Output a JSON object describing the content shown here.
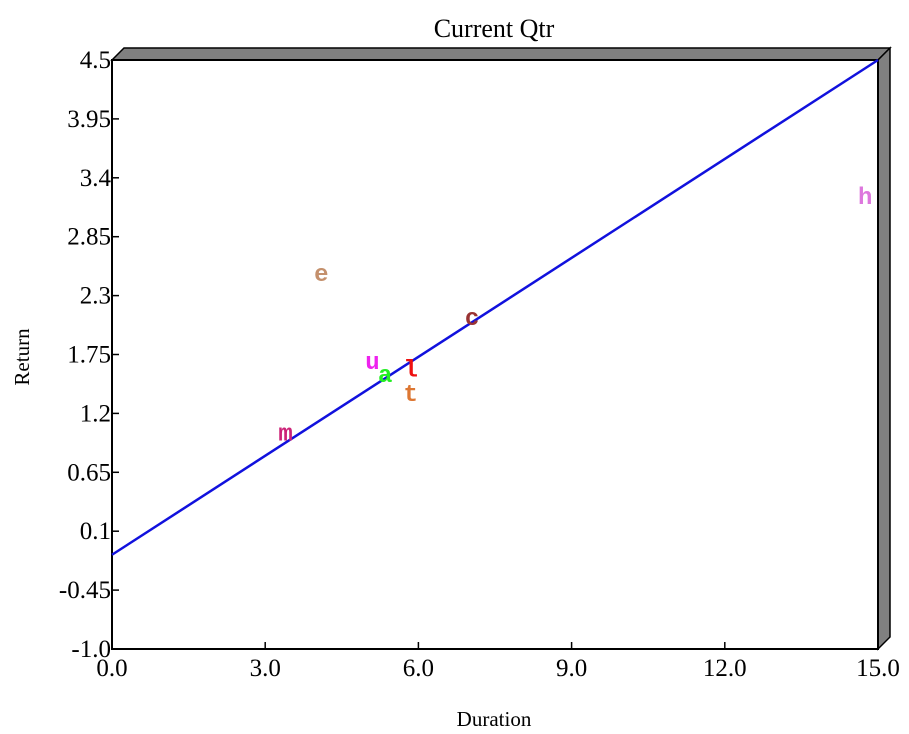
{
  "chart_data": {
    "type": "scatter",
    "title": "Current Qtr",
    "xlabel": "Duration",
    "ylabel": "Return",
    "xlim": [
      0.0,
      15.0
    ],
    "ylim": [
      -1.0,
      4.5
    ],
    "x_ticks": [
      "0.0",
      "3.0",
      "6.0",
      "9.0",
      "12.0",
      "15.0"
    ],
    "y_ticks": [
      "4.5",
      "3.95",
      "3.4",
      "2.85",
      "2.3",
      "1.75",
      "1.2",
      "0.65",
      "0.1",
      "-0.45",
      "-1.0"
    ],
    "points": [
      {
        "label": "m",
        "x": 3.4,
        "y": 1.02,
        "color": "#cc2277"
      },
      {
        "label": "e",
        "x": 4.1,
        "y": 2.51,
        "color": "#c4906c"
      },
      {
        "label": "u",
        "x": 5.1,
        "y": 1.69,
        "color": "#ee22ee"
      },
      {
        "label": "a",
        "x": 5.35,
        "y": 1.57,
        "color": "#22ee22"
      },
      {
        "label": "l",
        "x": 5.85,
        "y": 1.62,
        "color": "#ee1111"
      },
      {
        "label": "t",
        "x": 5.85,
        "y": 1.39,
        "color": "#dd7733"
      },
      {
        "label": "c",
        "x": 7.05,
        "y": 2.1,
        "color": "#993333"
      },
      {
        "label": "h",
        "x": 14.75,
        "y": 3.23,
        "color": "#dd77dd"
      }
    ],
    "trendline": {
      "x": [
        0.0,
        15.0
      ],
      "y": [
        -0.12,
        4.5
      ],
      "color": "#1111dd"
    },
    "frame_color": "#808080",
    "grid": false,
    "legend": false
  }
}
